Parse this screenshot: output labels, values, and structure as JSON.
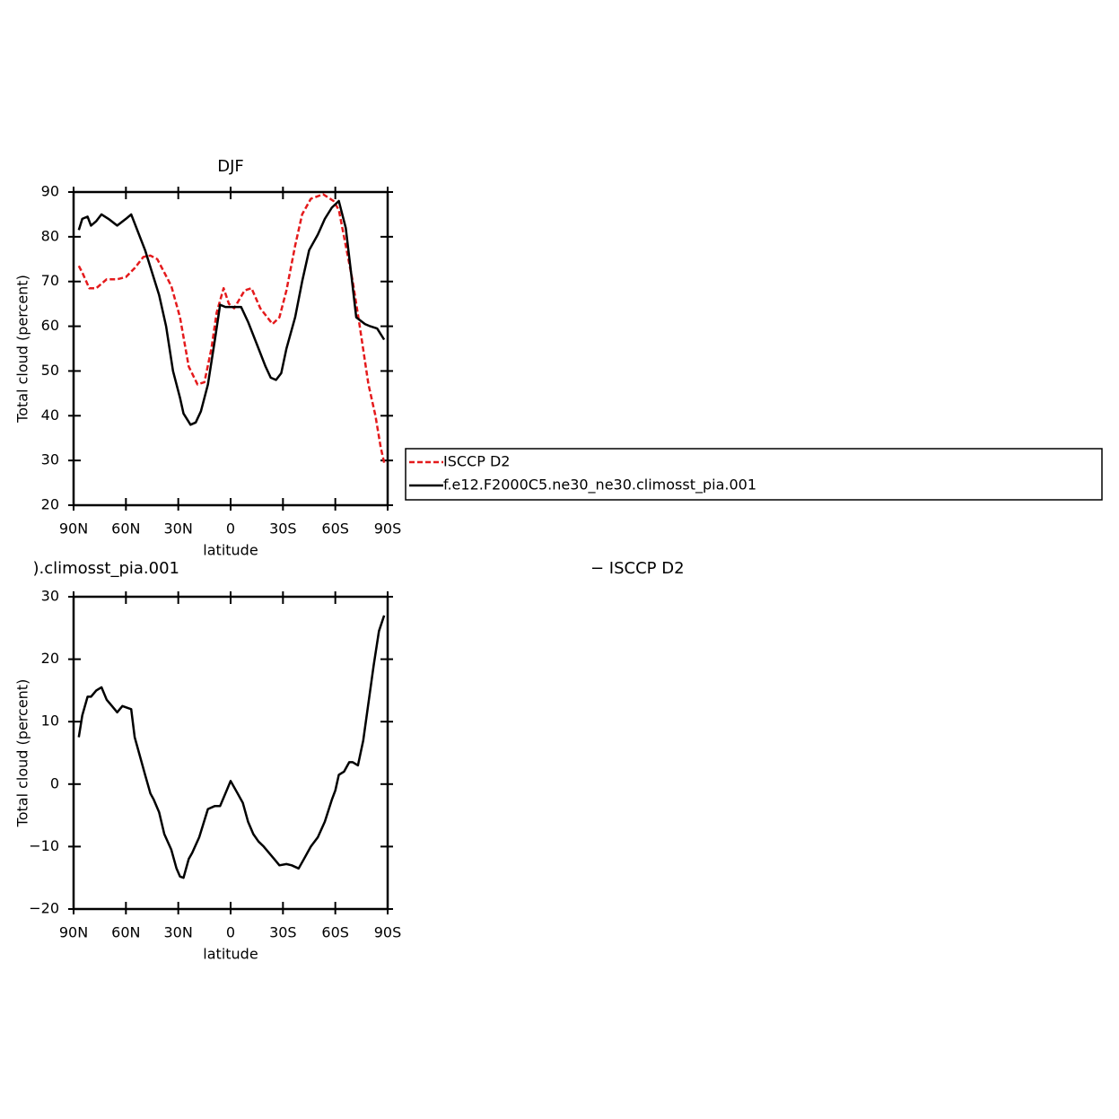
{
  "chart_data": [
    {
      "type": "line",
      "title": "DJF",
      "ylabel": "Total cloud (percent)",
      "xlabel": "latitude",
      "xlim": [
        90,
        -90
      ],
      "xticks": [
        {
          "value": 90,
          "label": "90N"
        },
        {
          "value": 60,
          "label": "60N"
        },
        {
          "value": 30,
          "label": "30N"
        },
        0,
        {
          "value": -30,
          "label": "30S"
        },
        {
          "value": -60,
          "label": "60S"
        },
        {
          "value": -90,
          "label": "90S"
        }
      ],
      "ylim": [
        20,
        90
      ],
      "yticks": [
        20,
        30,
        40,
        50,
        60,
        70,
        80,
        90
      ],
      "legend": "right",
      "series": [
        {
          "name": "ISCCP D2",
          "color": "#e41a1c",
          "dash": true,
          "x": [
            87,
            85,
            81,
            77,
            71,
            65,
            60,
            55,
            50,
            46,
            42,
            38,
            34,
            29,
            24,
            19,
            15,
            11,
            8,
            4,
            1,
            -2,
            -5,
            -8,
            -12,
            -17,
            -24,
            -28,
            -32,
            -37,
            -41,
            -46,
            -53,
            -59,
            -62,
            -65,
            -70,
            -74,
            -79,
            -83,
            -86,
            -88
          ],
          "values": [
            73.5,
            72,
            68.5,
            68.5,
            70.5,
            70.5,
            71,
            73,
            75.5,
            75.8,
            75,
            72,
            69,
            62,
            51,
            47,
            47.5,
            55,
            63,
            68.5,
            65,
            64,
            66,
            68,
            68.5,
            64,
            60.5,
            62,
            68,
            78,
            85,
            88.5,
            89.5,
            88,
            86,
            80,
            70,
            60,
            47,
            40,
            33,
            29.5
          ]
        },
        {
          "name": "f.e12.F2000C5.ne30_ne30.climosst_pia.001",
          "color": "#000000",
          "dash": false,
          "x": [
            87,
            85,
            82,
            80,
            77,
            74,
            70,
            65,
            60,
            57,
            52,
            49,
            45,
            41,
            37,
            33,
            29,
            27,
            23,
            20,
            17,
            13,
            9,
            6,
            3,
            -2,
            -6,
            -10,
            -15,
            -20,
            -23,
            -26,
            -29,
            -32,
            -37,
            -41,
            -45,
            -50,
            -54,
            -58,
            -62,
            -66,
            -69,
            -72,
            -77,
            -80,
            -84,
            -88
          ],
          "values": [
            81.5,
            84,
            84.5,
            82.5,
            83.5,
            85,
            84,
            82.5,
            84,
            85,
            80,
            77,
            72,
            67,
            60,
            50,
            44,
            40.5,
            38,
            38.5,
            41,
            47,
            57,
            64.8,
            64.3,
            64.3,
            64.3,
            61,
            56,
            51,
            48.5,
            48,
            49.5,
            55,
            62,
            70,
            77,
            80.5,
            84,
            86.5,
            88,
            82,
            72,
            62,
            60.5,
            60,
            59.5,
            57
          ]
        }
      ]
    },
    {
      "type": "line",
      "title_left": ").climosst_pia.001",
      "title_right": "− ISCCP D2",
      "ylabel": "Total cloud (percent)",
      "xlabel": "latitude",
      "xlim": [
        90,
        -90
      ],
      "xticks": [
        {
          "value": 90,
          "label": "90N"
        },
        {
          "value": 60,
          "label": "60N"
        },
        {
          "value": 30,
          "label": "30N"
        },
        0,
        {
          "value": -30,
          "label": "30S"
        },
        {
          "value": -60,
          "label": "60S"
        },
        {
          "value": -90,
          "label": "90S"
        }
      ],
      "ylim": [
        -20,
        30
      ],
      "yticks": [
        {
          "value": -20,
          "label": "−20"
        },
        {
          "value": -10,
          "label": "−10"
        },
        0,
        10,
        20,
        30
      ],
      "series": [
        {
          "color": "#000000",
          "dash": false,
          "x": [
            87,
            85,
            82,
            80,
            77,
            74,
            71,
            68,
            65,
            62,
            57,
            55,
            52,
            49,
            46,
            44,
            41,
            38,
            34,
            31,
            29,
            27,
            24,
            22,
            18,
            13,
            9,
            6,
            3,
            0,
            -4,
            -7,
            -10,
            -13,
            -16,
            -19,
            -22,
            -25,
            -28,
            -32,
            -35,
            -39,
            -42,
            -46,
            -50,
            -54,
            -58,
            -60,
            -62,
            -65,
            -68,
            -70,
            -73,
            -76,
            -79,
            -82,
            -85,
            -88
          ],
          "values": [
            7.5,
            11,
            14,
            14,
            15,
            15.5,
            13.5,
            12.5,
            11.5,
            12.5,
            12,
            7.5,
            4.5,
            1.5,
            -1.5,
            -2.5,
            -4.5,
            -8,
            -10.5,
            -13.5,
            -14.8,
            -15,
            -12,
            -11,
            -8.5,
            -4,
            -3.5,
            -3.5,
            -1.5,
            0.5,
            -1.5,
            -3,
            -6,
            -8,
            -9.2,
            -10,
            -11,
            -12,
            -13,
            -12.8,
            -13,
            -13.5,
            -12,
            -10,
            -8.5,
            -6,
            -2.5,
            -1,
            1.5,
            2,
            3.5,
            3.5,
            3,
            7,
            13,
            19,
            24.5,
            27
          ]
        }
      ]
    }
  ]
}
